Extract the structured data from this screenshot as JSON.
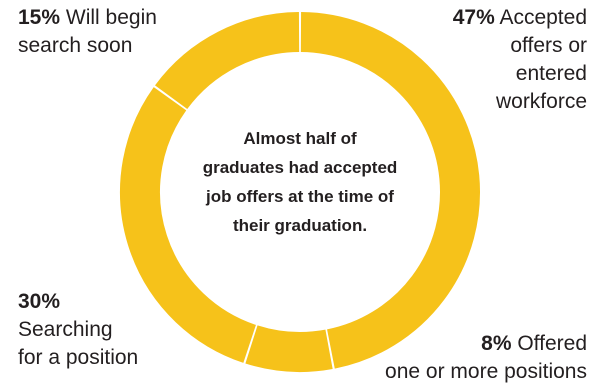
{
  "chart_data": {
    "type": "pie",
    "style": "donut",
    "slices": [
      {
        "value": 47,
        "pct_label": "47%",
        "label": "Accepted offers or entered workforce"
      },
      {
        "value": 8,
        "pct_label": "8%",
        "label": "Offered one or more positions"
      },
      {
        "value": 30,
        "pct_label": "30%",
        "label": "Searching for a position"
      },
      {
        "value": 15,
        "pct_label": "15%",
        "label": "Will begin search soon"
      }
    ],
    "center_text": [
      "Almost half of",
      "graduates had accepted",
      "job offers at the time of",
      "their graduation."
    ],
    "colors": {
      "ring": "#f6c21a",
      "text": "#231f20",
      "background": "#ffffff"
    }
  },
  "labels": {
    "s47": {
      "pct": "47%",
      "line1": "Accepted",
      "line2": "offers or",
      "line3": "entered",
      "line4": "workforce"
    },
    "s8": {
      "pct": "8%",
      "line1": "Offered",
      "line2": "one or more positions"
    },
    "s30": {
      "pct": "30%",
      "line1": "Searching",
      "line2": "for a position"
    },
    "s15": {
      "pct": "15%",
      "line1": "Will begin",
      "line2": "search soon"
    }
  }
}
